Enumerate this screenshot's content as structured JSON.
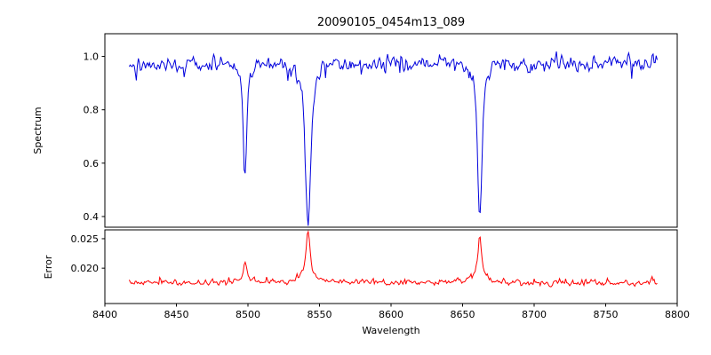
{
  "chart_data": [
    {
      "type": "line",
      "panel": "spectrum",
      "title": "20090105_0454m13_089",
      "xlabel": "Wavelength",
      "ylabel": "Spectrum",
      "line_color": "#0000dd",
      "xlim": [
        8400,
        8800
      ],
      "ylim": [
        0.36,
        1.085
      ],
      "xticks": [
        8400,
        8450,
        8500,
        8550,
        8600,
        8650,
        8700,
        8750,
        8800
      ],
      "ytick_values": [
        0.4,
        0.6,
        0.8,
        1.0
      ],
      "ytick_labels": [
        "0.4",
        "0.6",
        "0.8",
        "1.0"
      ],
      "x_data_range": [
        8417,
        8786
      ],
      "n_points": 520,
      "series_model": {
        "continuum": 0.972,
        "noise_std": 0.02,
        "dip_probability": 0.05,
        "dip_max": 0.06,
        "absorption_lines": [
          {
            "center": 8498,
            "depth": 0.42,
            "width": 1.6
          },
          {
            "center": 8542,
            "depth": 0.6,
            "width": 2.4
          },
          {
            "center": 8662,
            "depth": 0.57,
            "width": 2.0
          }
        ]
      }
    },
    {
      "type": "line",
      "panel": "error",
      "ylabel": "Error",
      "line_color": "#ff0000",
      "ylim": [
        0.014,
        0.0265
      ],
      "ytick_values": [
        0.02,
        0.025
      ],
      "ytick_labels": [
        "0.020",
        "0.025"
      ],
      "series_model": {
        "baseline": 0.0175,
        "noise_std": 0.00035,
        "spike_probability": 0.06,
        "spike_max": 0.0007,
        "peaks": [
          {
            "center": 8498,
            "height": 0.0033,
            "width": 1.4
          },
          {
            "center": 8542,
            "height": 0.0083,
            "width": 1.6
          },
          {
            "center": 8662,
            "height": 0.0072,
            "width": 1.5
          }
        ]
      }
    }
  ]
}
